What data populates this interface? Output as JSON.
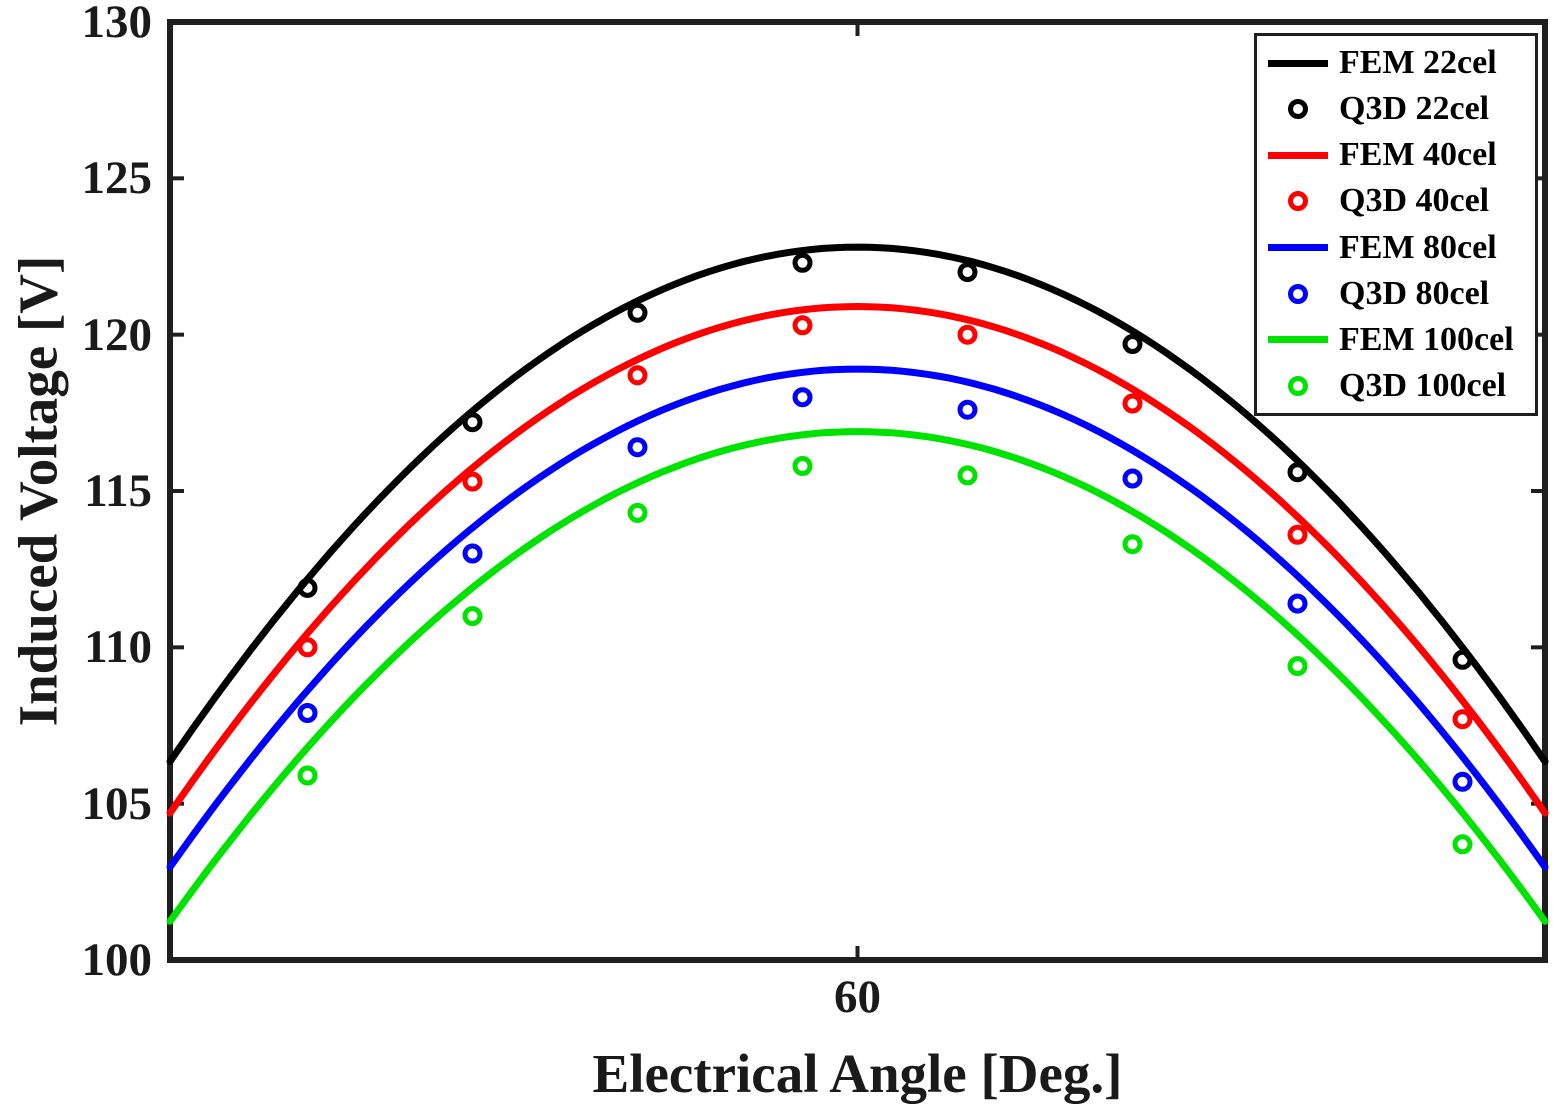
{
  "figure": {
    "background": "#ffffff",
    "axis_color": "#1f1f1f",
    "text_color": "#1a1a1a"
  },
  "chart_data": {
    "type": "line+scatter",
    "title": "",
    "xlabel": "Electrical Angle [Deg.]",
    "ylabel": "Induced Voltage [V]",
    "xlim": [
      30,
      90
    ],
    "ylim": [
      100,
      130
    ],
    "x_ticks": [
      60
    ],
    "y_ticks": [
      100,
      105,
      110,
      115,
      120,
      125,
      130
    ],
    "grid": false,
    "legend_position": "top-right",
    "fem_series": [
      {
        "name": "FEM 22cel",
        "color": "#000000",
        "peak_voltage": 122.8,
        "peak_angle_deg": 60,
        "sample_x": [
          30,
          35,
          40,
          45,
          50,
          55,
          60,
          65,
          70,
          75,
          80,
          85,
          90
        ],
        "sample_y": [
          106.3,
          111.3,
          115.4,
          118.6,
          120.9,
          122.3,
          122.8,
          122.3,
          120.9,
          118.6,
          115.4,
          111.3,
          106.3
        ]
      },
      {
        "name": "FEM 40cel",
        "color": "#ff0000",
        "peak_voltage": 120.9,
        "peak_angle_deg": 60,
        "sample_x": [
          30,
          35,
          40,
          45,
          50,
          55,
          60,
          65,
          70,
          75,
          80,
          85,
          90
        ],
        "sample_y": [
          104.7,
          109.6,
          113.6,
          116.8,
          119.1,
          120.4,
          120.9,
          120.4,
          119.1,
          116.8,
          113.6,
          109.6,
          104.7
        ]
      },
      {
        "name": "FEM 80cel",
        "color": "#0000ff",
        "peak_voltage": 118.9,
        "peak_angle_deg": 60,
        "sample_x": [
          30,
          35,
          40,
          45,
          50,
          55,
          60,
          65,
          70,
          75,
          80,
          85,
          90
        ],
        "sample_y": [
          103.0,
          107.8,
          111.7,
          114.8,
          117.1,
          118.4,
          118.9,
          118.4,
          117.1,
          114.8,
          111.7,
          107.8,
          103.0
        ]
      },
      {
        "name": "FEM 100cel",
        "color": "#00e300",
        "peak_voltage": 116.9,
        "peak_angle_deg": 60,
        "sample_x": [
          30,
          35,
          40,
          45,
          50,
          55,
          60,
          65,
          70,
          75,
          80,
          85,
          90
        ],
        "sample_y": [
          101.2,
          106.0,
          109.8,
          112.9,
          115.1,
          116.4,
          116.9,
          116.4,
          115.1,
          112.9,
          109.8,
          106.0,
          101.2
        ]
      }
    ],
    "q3d_series": [
      {
        "name": "Q3D 22cel",
        "color": "#000000",
        "x": [
          36.0,
          43.2,
          50.4,
          57.6,
          64.8,
          72.0,
          79.2,
          86.4
        ],
        "y": [
          111.9,
          117.2,
          120.7,
          122.3,
          122.0,
          119.7,
          115.6,
          109.6
        ]
      },
      {
        "name": "Q3D 40cel",
        "color": "#ff0000",
        "x": [
          36.0,
          43.2,
          50.4,
          57.6,
          64.8,
          72.0,
          79.2,
          86.4
        ],
        "y": [
          110.0,
          115.3,
          118.7,
          120.3,
          120.0,
          117.8,
          113.6,
          107.7
        ]
      },
      {
        "name": "Q3D 80cel",
        "color": "#0000ff",
        "x": [
          36.0,
          43.2,
          50.4,
          57.6,
          64.8,
          72.0,
          79.2,
          86.4
        ],
        "y": [
          107.9,
          113.0,
          116.4,
          118.0,
          117.6,
          115.4,
          111.4,
          105.7
        ]
      },
      {
        "name": "Q3D 100cel",
        "color": "#00e300",
        "x": [
          36.0,
          43.2,
          50.4,
          57.6,
          64.8,
          72.0,
          79.2,
          86.4
        ],
        "y": [
          105.9,
          111.0,
          114.3,
          115.8,
          115.5,
          113.3,
          109.4,
          103.7
        ]
      }
    ],
    "legend_entries": [
      {
        "label": "FEM 22cel",
        "glyph": "line",
        "color": "#000000"
      },
      {
        "label": "Q3D 22cel",
        "glyph": "ring",
        "color": "#000000"
      },
      {
        "label": "FEM 40cel",
        "glyph": "line",
        "color": "#ff0000"
      },
      {
        "label": "Q3D 40cel",
        "glyph": "ring",
        "color": "#ff0000"
      },
      {
        "label": "FEM 80cel",
        "glyph": "line",
        "color": "#0000ff"
      },
      {
        "label": "Q3D 80cel",
        "glyph": "ring",
        "color": "#0000ff"
      },
      {
        "label": "FEM 100cel",
        "glyph": "line",
        "color": "#00e300"
      },
      {
        "label": "Q3D 100cel",
        "glyph": "ring",
        "color": "#00e300"
      }
    ]
  }
}
